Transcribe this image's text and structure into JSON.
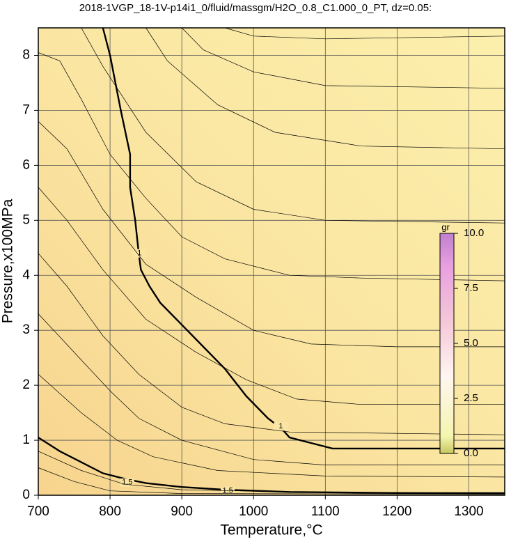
{
  "chart_data": {
    "type": "contour",
    "title": "2018-1VGP_18-1V-p14i1_0/fluid/massgm/H2O_0.8_C1.000_0_PT, dz=0.05:",
    "x_label": "Temperature,°C",
    "y_label": "Pressure,x100MPa",
    "xlim": [
      700,
      1350
    ],
    "ylim": [
      0,
      8.5
    ],
    "xticks": [
      700,
      800,
      900,
      1000,
      1100,
      1200,
      1300
    ],
    "yticks": [
      0,
      1,
      2,
      3,
      4,
      5,
      6,
      7,
      8
    ],
    "grid": true,
    "contours": [
      {
        "x": [
          790,
          800,
          815,
          828,
          828,
          835,
          840,
          843,
          855,
          870,
          900,
          930,
          960,
          990,
          1020,
          1040,
          1050,
          1080,
          1110,
          1350
        ],
        "y": [
          8.5,
          8.0,
          7.0,
          6.2,
          5.6,
          5.0,
          4.4,
          4.1,
          3.8,
          3.5,
          3.1,
          2.7,
          2.3,
          1.8,
          1.4,
          1.2,
          1.05,
          0.95,
          0.85,
          0.85
        ],
        "thick": true,
        "labels": [
          {
            "text": "1",
            "x": 841,
            "y": 4.4
          },
          {
            "text": "1",
            "x": 1038,
            "y": 1.25
          }
        ]
      },
      {
        "x": [
          700,
          730,
          760,
          790,
          820,
          850,
          900,
          960,
          1050,
          1200,
          1350
        ],
        "y": [
          1.05,
          0.8,
          0.6,
          0.4,
          0.3,
          0.22,
          0.15,
          0.1,
          0.06,
          0.04,
          0.03
        ],
        "thick": true,
        "labels": [
          {
            "text": "1.5",
            "x": 824,
            "y": 0.23
          },
          {
            "text": "1.5",
            "x": 964,
            "y": 0.08
          }
        ]
      },
      {
        "x": [
          960,
          1000,
          1100,
          1350
        ],
        "y": [
          8.5,
          8.35,
          8.3,
          8.35
        ]
      },
      {
        "x": [
          900,
          930,
          1000,
          1100,
          1350
        ],
        "y": [
          8.5,
          8.1,
          7.7,
          7.45,
          7.4
        ]
      },
      {
        "x": [
          850,
          880,
          950,
          1030,
          1150,
          1350
        ],
        "y": [
          8.5,
          7.9,
          7.1,
          6.6,
          6.35,
          6.3
        ]
      },
      {
        "x": [
          760,
          790,
          850,
          920,
          1000,
          1100,
          1350
        ],
        "y": [
          8.5,
          7.8,
          6.6,
          5.7,
          5.2,
          5.0,
          4.95
        ]
      },
      {
        "x": [
          700,
          730,
          760,
          800,
          850,
          900,
          960,
          1050,
          1150,
          1350
        ],
        "y": [
          8.05,
          7.9,
          7.2,
          6.2,
          5.4,
          4.7,
          4.3,
          4.0,
          3.95,
          3.9
        ]
      },
      {
        "x": [
          700,
          740,
          790,
          850,
          920,
          1000,
          1080,
          1200,
          1350
        ],
        "y": [
          6.8,
          6.3,
          5.2,
          4.2,
          3.6,
          3.0,
          2.75,
          2.7,
          2.7
        ]
      },
      {
        "x": [
          700,
          740,
          790,
          850,
          920,
          990,
          1060,
          1150,
          1350
        ],
        "y": [
          5.6,
          5.0,
          4.1,
          3.2,
          2.6,
          2.1,
          1.75,
          1.65,
          1.65
        ]
      },
      {
        "x": [
          700,
          740,
          790,
          840,
          900,
          960,
          1050,
          1350
        ],
        "y": [
          4.4,
          3.8,
          2.9,
          2.2,
          1.6,
          1.3,
          1.15,
          1.1
        ]
      },
      {
        "x": [
          700,
          750,
          800,
          840,
          900,
          1000,
          1100,
          1350
        ],
        "y": [
          3.3,
          2.6,
          1.9,
          1.4,
          1.0,
          0.65,
          0.55,
          0.55
        ]
      },
      {
        "x": [
          700,
          760,
          810,
          860,
          950,
          1100,
          1350
        ],
        "y": [
          2.2,
          1.5,
          1.0,
          0.7,
          0.45,
          0.35,
          0.33
        ]
      },
      {
        "x": [
          700,
          760,
          820,
          900,
          1100,
          1350
        ],
        "y": [
          0.8,
          0.45,
          0.2,
          0.1,
          0.05,
          0.05
        ]
      },
      {
        "x": [
          700,
          750,
          800,
          900,
          1350
        ],
        "y": [
          0.5,
          0.25,
          0.08,
          0.03,
          0.02
        ]
      }
    ],
    "colorbar": {
      "label": "gr",
      "lim": [
        0,
        10
      ],
      "ticks": [
        {
          "value": 0,
          "label": "0.0"
        },
        {
          "value": 2.5,
          "label": "2.5"
        },
        {
          "value": 5,
          "label": "5.0"
        },
        {
          "value": 7.5,
          "label": "7.5"
        },
        {
          "value": 10,
          "label": "10.0"
        }
      ]
    }
  }
}
